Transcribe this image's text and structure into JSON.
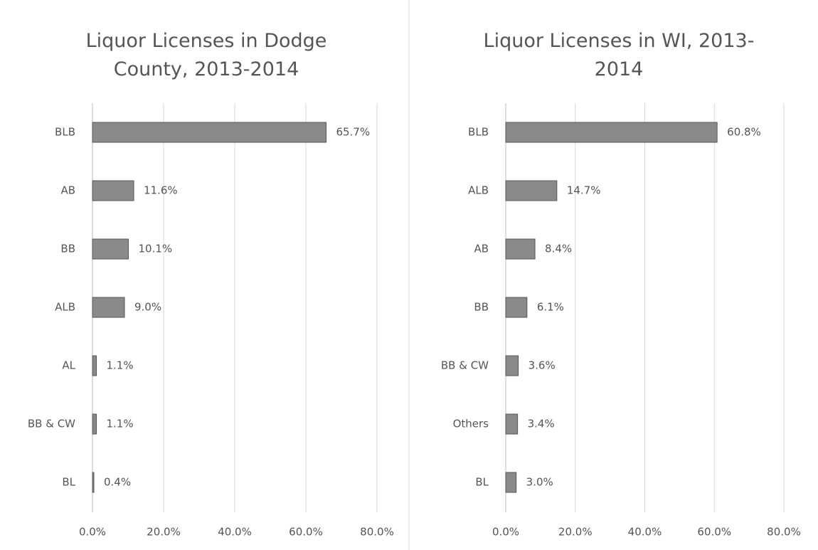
{
  "chart_data": [
    {
      "type": "bar",
      "orientation": "horizontal",
      "title": "Liquor Licenses in Dodge County, 2013-2014",
      "categories": [
        "BLB",
        "AB",
        "BB",
        "ALB",
        "AL",
        "BB & CW",
        "BL"
      ],
      "values": [
        65.7,
        11.6,
        10.1,
        9.0,
        1.1,
        1.1,
        0.4
      ],
      "value_labels": [
        "65.7%",
        "11.6%",
        "10.1%",
        "9.0%",
        "1.1%",
        "1.1%",
        "0.4%"
      ],
      "color": "#8a8a8a",
      "xlim": [
        0,
        80
      ],
      "xticks": [
        {
          "value": 0,
          "label": "0.0%"
        },
        {
          "value": 20,
          "label": "20.0%"
        },
        {
          "value": 40,
          "label": "40.0%"
        },
        {
          "value": 60,
          "label": "60.0%"
        },
        {
          "value": 80,
          "label": "80.0%"
        }
      ],
      "grid": true
    },
    {
      "type": "bar",
      "orientation": "horizontal",
      "title": "Liquor Licenses in WI, 2013-2014",
      "categories": [
        "BLB",
        "ALB",
        "AB",
        "BB",
        "BB & CW",
        "Others",
        "BL"
      ],
      "values": [
        60.8,
        14.7,
        8.4,
        6.1,
        3.6,
        3.4,
        3.0
      ],
      "value_labels": [
        "60.8%",
        "14.7%",
        "8.4%",
        "6.1%",
        "3.6%",
        "3.4%",
        "3.0%"
      ],
      "color": "#8a8a8a",
      "xlim": [
        0,
        80
      ],
      "xticks": [
        {
          "value": 0,
          "label": "0.0%"
        },
        {
          "value": 20,
          "label": "20.0%"
        },
        {
          "value": 40,
          "label": "40.0%"
        },
        {
          "value": 60,
          "label": "60.0%"
        },
        {
          "value": 80,
          "label": "80.0%"
        }
      ],
      "grid": true
    }
  ]
}
